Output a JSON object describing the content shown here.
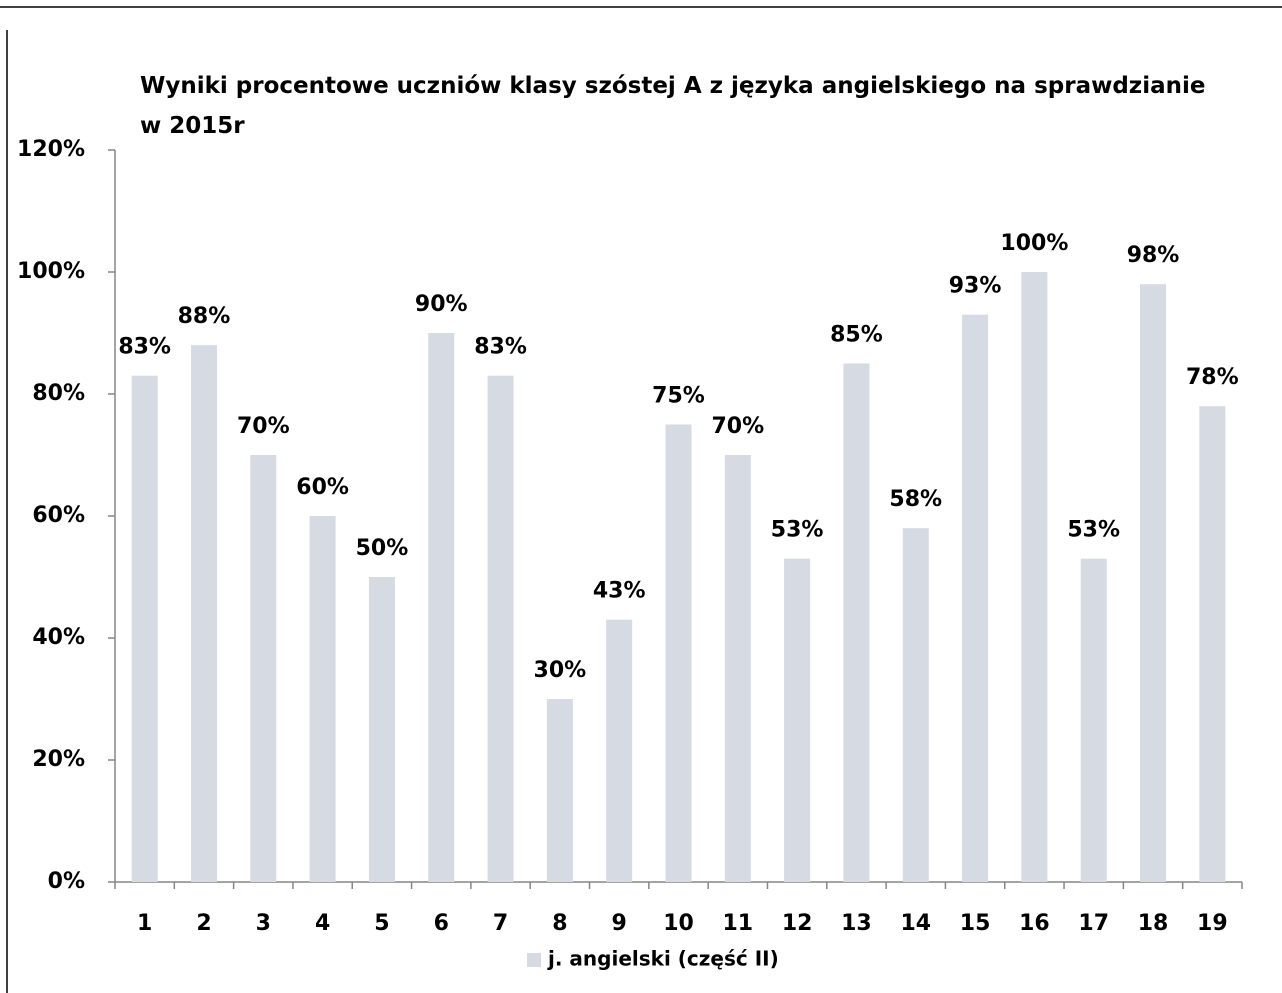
{
  "chart_data": {
    "type": "bar",
    "title": "Wyniki procentowe uczniów klasy szóstej A z języka angielskiego na sprawdzianie w 2015r",
    "categories": [
      "1",
      "2",
      "3",
      "4",
      "5",
      "6",
      "7",
      "8",
      "9",
      "10",
      "11",
      "12",
      "13",
      "14",
      "15",
      "16",
      "17",
      "18",
      "19"
    ],
    "series": [
      {
        "name": "j. angielski (część II)",
        "color": "#d5dae3",
        "values": [
          83,
          88,
          70,
          60,
          50,
          90,
          83,
          30,
          43,
          75,
          70,
          53,
          85,
          58,
          93,
          100,
          53,
          98,
          78
        ],
        "value_labels": [
          "83%",
          "88%",
          "70%",
          "60%",
          "50%",
          "90%",
          "83%",
          "30%",
          "43%",
          "75%",
          "70%",
          "53%",
          "85%",
          "58%",
          "93%",
          "100%",
          "53%",
          "98%",
          "78%"
        ]
      }
    ],
    "ylim": [
      0,
      120
    ],
    "yticks": [
      {
        "value": 0,
        "label": "0%"
      },
      {
        "value": 20,
        "label": "20%"
      },
      {
        "value": 40,
        "label": "40%"
      },
      {
        "value": 60,
        "label": "60%"
      },
      {
        "value": 80,
        "label": "80%"
      },
      {
        "value": 100,
        "label": "100%"
      },
      {
        "value": 120,
        "label": "120%"
      }
    ],
    "legend": "bottom"
  }
}
